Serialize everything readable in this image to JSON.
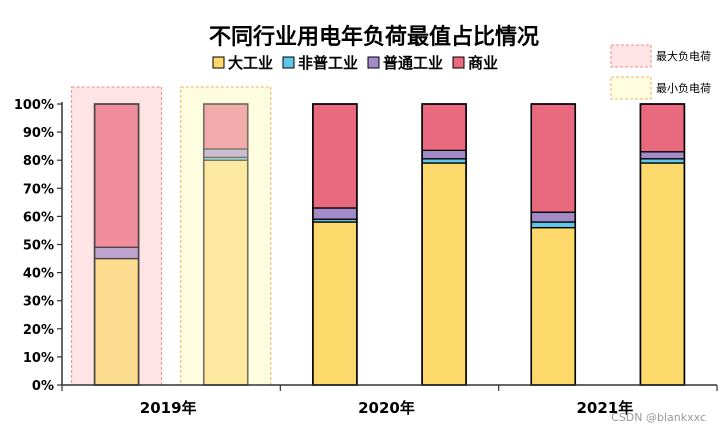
{
  "chart_data": {
    "type": "bar",
    "stacked": true,
    "title": "不同行业用电年负荷最值占比情况",
    "categories": [
      "2019年",
      "",
      "2020年",
      "",
      "2021年",
      ""
    ],
    "y_axis": {
      "min": 0,
      "max": 100,
      "step": 10,
      "unit": "%"
    },
    "y_ticks": [
      "0%",
      "10%",
      "20%",
      "30%",
      "40%",
      "50%",
      "60%",
      "70%",
      "80%",
      "90%",
      "100%"
    ],
    "series": [
      {
        "name": "大工业",
        "color": "#fcd96a",
        "values": [
          45,
          80,
          58,
          79,
          56,
          79
        ]
      },
      {
        "name": "非普工业",
        "color": "#5ec6e8",
        "values": [
          0,
          1,
          1,
          1.5,
          2,
          1.5
        ]
      },
      {
        "name": "普通工业",
        "color": "#a38bc8",
        "values": [
          4,
          3,
          4,
          3,
          3.5,
          2.5
        ]
      },
      {
        "name": "商业",
        "color": "#e9697f",
        "values": [
          51,
          16,
          37,
          16.5,
          38.5,
          17
        ]
      }
    ],
    "highlight": [
      {
        "bar_index": 0,
        "label": "最大负电荷",
        "fill": "#ffe4e6",
        "border": "#f08a8a",
        "bar_opacity": 0.7
      },
      {
        "bar_index": 1,
        "label": "最小负电荷",
        "fill": "#fffde0",
        "border": "#f0b060",
        "bar_opacity": 0.55
      }
    ],
    "grid": false,
    "legend_position": "top"
  },
  "watermark": "CSDN @blankxxc"
}
